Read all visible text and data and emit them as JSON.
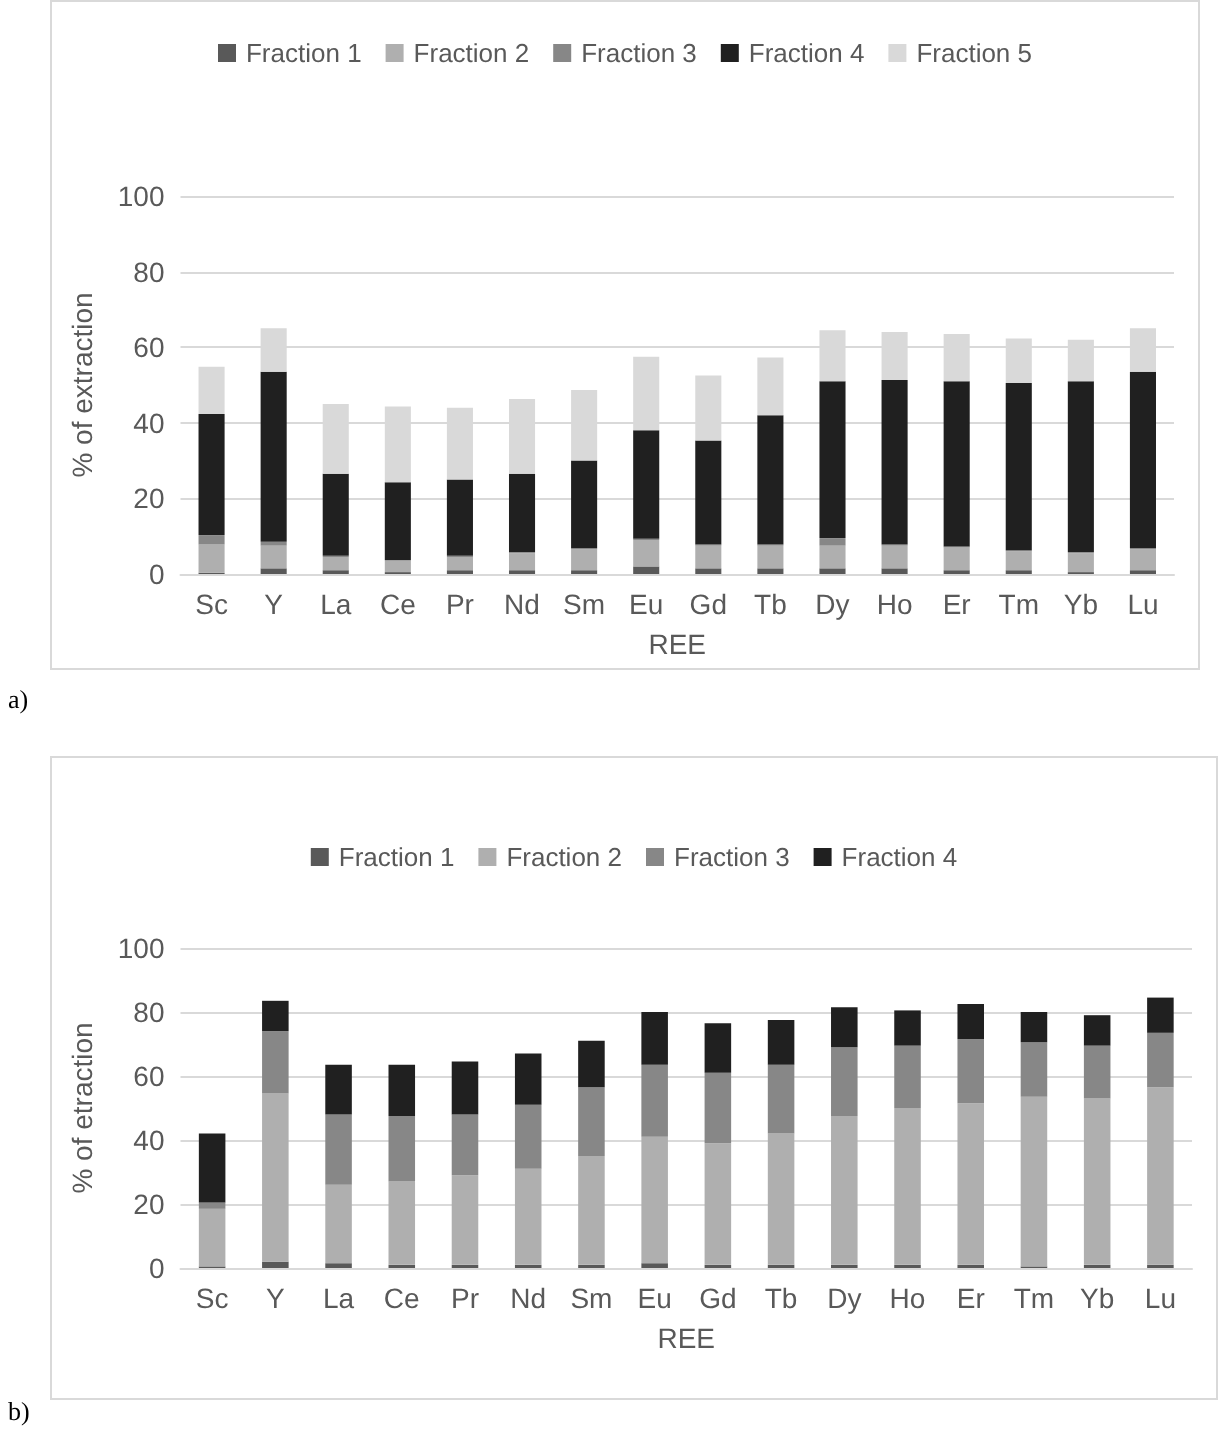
{
  "chart_data": [
    {
      "type": "bar",
      "stacked": true,
      "xlabel": "REE",
      "ylabel": "% of extraction",
      "annotations": [
        "a)"
      ],
      "categories": [
        "Sc",
        "Y",
        "La",
        "Ce",
        "Pr",
        "Nd",
        "Sm",
        "Eu",
        "Gd",
        "Tb",
        "Dy",
        "Ho",
        "Er",
        "Tm",
        "Yb",
        "Lu"
      ],
      "ylim": [
        0,
        100
      ],
      "yticks": [
        0,
        20,
        40,
        60,
        80,
        100
      ],
      "grid": "y",
      "legend": "top",
      "series": [
        {
          "name": "Fraction 1",
          "color": "#595959",
          "values": [
            0.3,
            1.5,
            1,
            0.5,
            1,
            1,
            1,
            2,
            1.5,
            1.5,
            1.5,
            1.5,
            1,
            1,
            0.5,
            1
          ]
        },
        {
          "name": "Fraction 2",
          "color": "#afafaf",
          "values": [
            7.5,
            6,
            3.5,
            3,
            3.5,
            4.5,
            5.5,
            7,
            6,
            6,
            6,
            6,
            6,
            5,
            5,
            5.5
          ]
        },
        {
          "name": "Fraction 3",
          "color": "#878787",
          "values": [
            2.5,
            1,
            0.3,
            0.2,
            0.3,
            0.3,
            0.3,
            0.3,
            0.3,
            0.3,
            2,
            0.3,
            0.3,
            0.3,
            0.3,
            0.3
          ]
        },
        {
          "name": "Fraction 4",
          "color": "#202020",
          "values": [
            32,
            45,
            21.7,
            20.6,
            20.2,
            20.7,
            23.2,
            28.7,
            27.5,
            34.2,
            41.5,
            43.5,
            43.7,
            44.2,
            45.2,
            46.7
          ]
        },
        {
          "name": "Fraction 5",
          "color": "#d9d9d9",
          "values": [
            12.5,
            11.5,
            18.5,
            20,
            19,
            19.8,
            18.7,
            19.5,
            17.2,
            15.3,
            13.5,
            12.7,
            12.5,
            11.8,
            11,
            11.5
          ]
        }
      ]
    },
    {
      "type": "bar",
      "stacked": true,
      "xlabel": "REE",
      "ylabel": "% of etraction",
      "annotations": [
        "b)"
      ],
      "categories": [
        "Sc",
        "Y",
        "La",
        "Ce",
        "Pr",
        "Nd",
        "Sm",
        "Eu",
        "Gd",
        "Tb",
        "Dy",
        "Ho",
        "Er",
        "Tm",
        "Yb",
        "Lu"
      ],
      "ylim": [
        0,
        100
      ],
      "yticks": [
        0,
        20,
        40,
        60,
        80,
        100
      ],
      "grid": "y",
      "legend": "top",
      "series": [
        {
          "name": "Fraction 1",
          "color": "#595959",
          "values": [
            0.5,
            2,
            1.5,
            1,
            1,
            1,
            1,
            1.5,
            1,
            1,
            1,
            1,
            1,
            0.5,
            1,
            1
          ]
        },
        {
          "name": "Fraction 2",
          "color": "#afafaf",
          "values": [
            18,
            52.5,
            24.5,
            26,
            28,
            30,
            34,
            39.5,
            38,
            41,
            46.5,
            49,
            50.5,
            53,
            52,
            55.5
          ]
        },
        {
          "name": "Fraction 3",
          "color": "#878787",
          "values": [
            2,
            19.5,
            22,
            20.5,
            19,
            20,
            21.5,
            22.5,
            22,
            21.5,
            21.5,
            19.5,
            20,
            17,
            16.5,
            17
          ]
        },
        {
          "name": "Fraction 4",
          "color": "#202020",
          "values": [
            21.5,
            9.5,
            15.5,
            16,
            16.5,
            16,
            14.5,
            16.5,
            15.5,
            14,
            12.5,
            11,
            11,
            9.5,
            9.5,
            11
          ]
        }
      ]
    }
  ]
}
